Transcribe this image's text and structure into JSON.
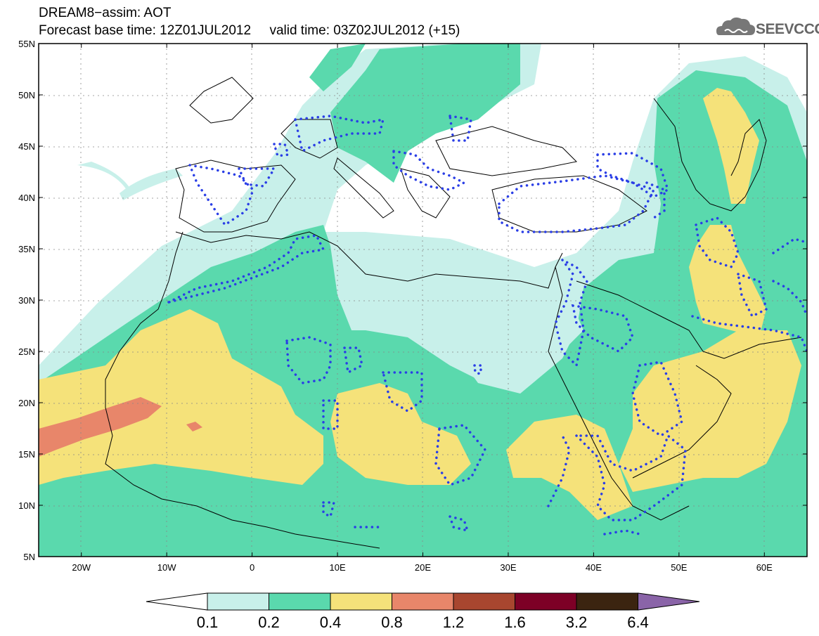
{
  "header": {
    "line1": "DREAM8−assim: AOT",
    "line2": "Forecast base time: 12Z01JUL2012     valid time: 03Z02JUL2012 (+15)"
  },
  "logo": {
    "text": "SEEVCCC",
    "icon": "cloud-icon"
  },
  "map": {
    "lat_labels": [
      "55N",
      "50N",
      "45N",
      "40N",
      "35N",
      "30N",
      "25N",
      "20N",
      "15N",
      "10N",
      "5N"
    ],
    "lon_labels": [
      "20W",
      "10W",
      "0",
      "10E",
      "20E",
      "30E",
      "40E",
      "50E",
      "60E"
    ],
    "extent": {
      "lon": [
        -25,
        65
      ],
      "lat": [
        5,
        55
      ]
    }
  },
  "colorbar": {
    "levels": [
      "0.1",
      "0.2",
      "0.4",
      "0.8",
      "1.2",
      "1.6",
      "3.2",
      "6.4"
    ],
    "colors": [
      "#ffffff",
      "#c8f0ea",
      "#5ad9ad",
      "#f5e27a",
      "#e8866a",
      "#a8462f",
      "#7d0026",
      "#3b2410",
      "#8a64a8"
    ]
  },
  "colors": {
    "c01": "#c8f0ea",
    "c02": "#5ad9ad",
    "c04": "#f5e27a",
    "c08": "#e8866a",
    "dots": "#2a3ee6"
  }
}
